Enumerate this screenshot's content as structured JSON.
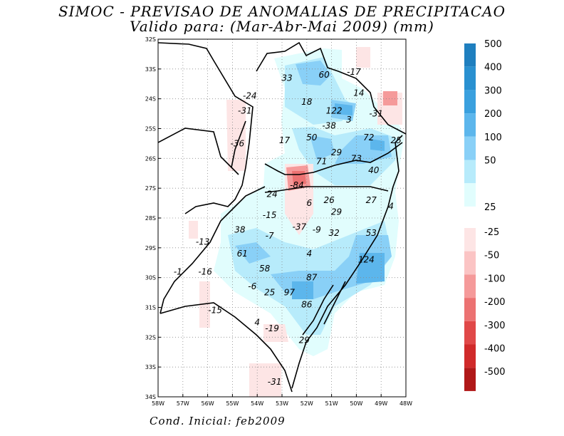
{
  "title_line1": "SIMOC - PREVISAO DE ANOMALIAS DE PRECIPITACAO",
  "title_line2": "Valido para: (Mar-Abr-Mai 2009) (mm)",
  "footer": "Cond. Inicial: feb2009",
  "lat_ticks": [
    "32S",
    "33S",
    "24S",
    "25S",
    "26S",
    "27S",
    "28S",
    "29S",
    "30S",
    "31S",
    "32S",
    "33S",
    "34S"
  ],
  "lon_ticks": [
    "58W",
    "57W",
    "56W",
    "55W",
    "54W",
    "53W",
    "52W",
    "51W",
    "50W",
    "49W",
    "48W"
  ],
  "positive_scale": {
    "labels": [
      "500",
      "400",
      "300",
      "200",
      "100",
      "50",
      "25"
    ],
    "colors": [
      "#1f7fbf",
      "#2990d0",
      "#3aa0de",
      "#5cb6ec",
      "#89d0f7",
      "#b7ebfb",
      "#e1fdfd"
    ]
  },
  "negative_scale": {
    "labels": [
      "-25",
      "-50",
      "-100",
      "-200",
      "-300",
      "-400",
      "-500"
    ],
    "colors": [
      "#fde5e5",
      "#fbc4c4",
      "#f59a9a",
      "#ec7272",
      "#e04848",
      "#d02a2a",
      "#b01818"
    ]
  },
  "map_labels": [
    {
      "t": "33",
      "lon": -52.8,
      "lat": -23.3
    },
    {
      "t": "60",
      "lon": -51.3,
      "lat": -23.2
    },
    {
      "t": "-17",
      "lon": -50.1,
      "lat": -23.1
    },
    {
      "t": "14",
      "lon": -49.9,
      "lat": -23.8
    },
    {
      "t": "-24",
      "lon": -54.3,
      "lat": -23.9
    },
    {
      "t": "18",
      "lon": -52.0,
      "lat": -24.1
    },
    {
      "t": "-31",
      "lon": -54.5,
      "lat": -24.4
    },
    {
      "t": "122",
      "lon": -50.9,
      "lat": -24.4
    },
    {
      "t": "-31",
      "lon": -49.2,
      "lat": -24.5
    },
    {
      "t": "3",
      "lon": -50.3,
      "lat": -24.7
    },
    {
      "t": "-38",
      "lon": -51.1,
      "lat": -24.9
    },
    {
      "t": "17",
      "lon": -52.9,
      "lat": -25.4
    },
    {
      "t": "50",
      "lon": -51.8,
      "lat": -25.3
    },
    {
      "t": "72",
      "lon": -49.5,
      "lat": -25.3
    },
    {
      "t": "25",
      "lon": -48.4,
      "lat": -25.4
    },
    {
      "t": "-36",
      "lon": -54.8,
      "lat": -25.5
    },
    {
      "t": "29",
      "lon": -50.8,
      "lat": -25.8
    },
    {
      "t": "73",
      "lon": -50.0,
      "lat": -26.0
    },
    {
      "t": "71",
      "lon": -51.4,
      "lat": -26.1
    },
    {
      "t": "40",
      "lon": -49.3,
      "lat": -26.4
    },
    {
      "t": "-84",
      "lon": -52.4,
      "lat": -26.9
    },
    {
      "t": "24",
      "lon": -53.4,
      "lat": -27.2
    },
    {
      "t": "6",
      "lon": -51.9,
      "lat": -27.5
    },
    {
      "t": "26",
      "lon": -51.1,
      "lat": -27.4
    },
    {
      "t": "27",
      "lon": -49.4,
      "lat": -27.4
    },
    {
      "t": "4",
      "lon": -48.6,
      "lat": -27.6
    },
    {
      "t": "29",
      "lon": -50.8,
      "lat": -27.8
    },
    {
      "t": "-15",
      "lon": -53.5,
      "lat": -27.9
    },
    {
      "t": "38",
      "lon": -54.7,
      "lat": -28.4
    },
    {
      "t": "-37",
      "lon": -52.3,
      "lat": -28.3
    },
    {
      "t": "-9",
      "lon": -51.6,
      "lat": -28.4
    },
    {
      "t": "32",
      "lon": -50.9,
      "lat": -28.5
    },
    {
      "t": "53",
      "lon": -49.4,
      "lat": -28.5
    },
    {
      "t": "-7",
      "lon": -53.5,
      "lat": -28.6
    },
    {
      "t": "-13",
      "lon": -56.2,
      "lat": -28.8
    },
    {
      "t": "61",
      "lon": -54.6,
      "lat": -29.2
    },
    {
      "t": "4",
      "lon": -51.9,
      "lat": -29.2
    },
    {
      "t": "124",
      "lon": -49.6,
      "lat": -29.4
    },
    {
      "t": "58",
      "lon": -53.7,
      "lat": -29.7
    },
    {
      "t": "-1",
      "lon": -57.2,
      "lat": -29.8
    },
    {
      "t": "-16",
      "lon": -56.1,
      "lat": -29.8
    },
    {
      "t": "87",
      "lon": -51.8,
      "lat": -30.0
    },
    {
      "t": "-6",
      "lon": -54.2,
      "lat": -30.3
    },
    {
      "t": "25",
      "lon": -53.5,
      "lat": -30.5
    },
    {
      "t": "97",
      "lon": -52.7,
      "lat": -30.5
    },
    {
      "t": "86",
      "lon": -52.0,
      "lat": -30.9
    },
    {
      "t": "-15",
      "lon": -55.7,
      "lat": -31.1
    },
    {
      "t": "4",
      "lon": -54.0,
      "lat": -31.5
    },
    {
      "t": "-19",
      "lon": -53.4,
      "lat": -31.7
    },
    {
      "t": "29",
      "lon": -52.1,
      "lat": -32.1
    },
    {
      "t": "-31",
      "lon": -53.3,
      "lat": -33.5
    }
  ]
}
